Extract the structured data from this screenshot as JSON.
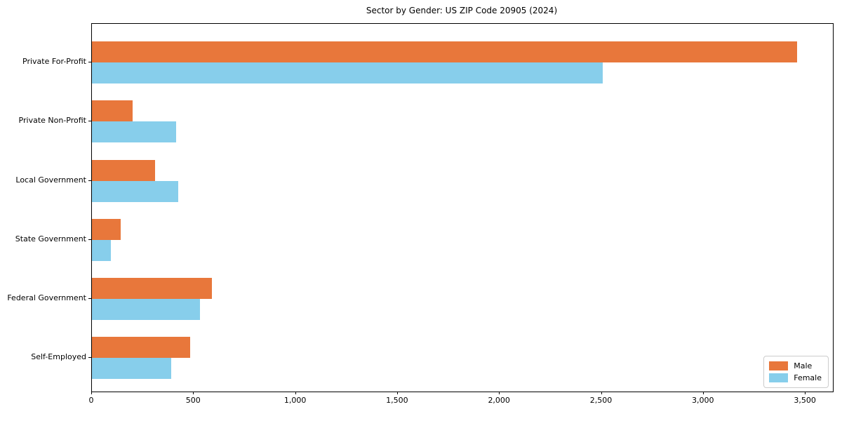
{
  "chart_data": {
    "type": "bar",
    "orientation": "horizontal",
    "title": "Sector by Gender: US ZIP Code 20905 (2024)",
    "categories": [
      "Private For-Profit",
      "Private Non-Profit",
      "Local Government",
      "State Government",
      "Federal Government",
      "Self-Employed"
    ],
    "series": [
      {
        "name": "Male",
        "color": "#e8773b",
        "values": [
          3460,
          200,
          310,
          140,
          590,
          482
        ]
      },
      {
        "name": "Female",
        "color": "#87ceeb",
        "values": [
          2505,
          413,
          424,
          92,
          530,
          387
        ]
      }
    ],
    "xlim": [
      0,
      3634
    ],
    "xticks": [
      0,
      500,
      1000,
      1500,
      2000,
      2500,
      3000,
      3500
    ],
    "xtick_labels": [
      "0",
      "500",
      "1,000",
      "1,500",
      "2,000",
      "2,500",
      "3,000",
      "3,500"
    ],
    "xlabel": "",
    "ylabel": "",
    "grid": false,
    "legend": {
      "position": "lower right",
      "entries": [
        "Male",
        "Female"
      ]
    },
    "axis_color": "#000000",
    "text_color": "#000000",
    "background_color": "#ffffff"
  }
}
